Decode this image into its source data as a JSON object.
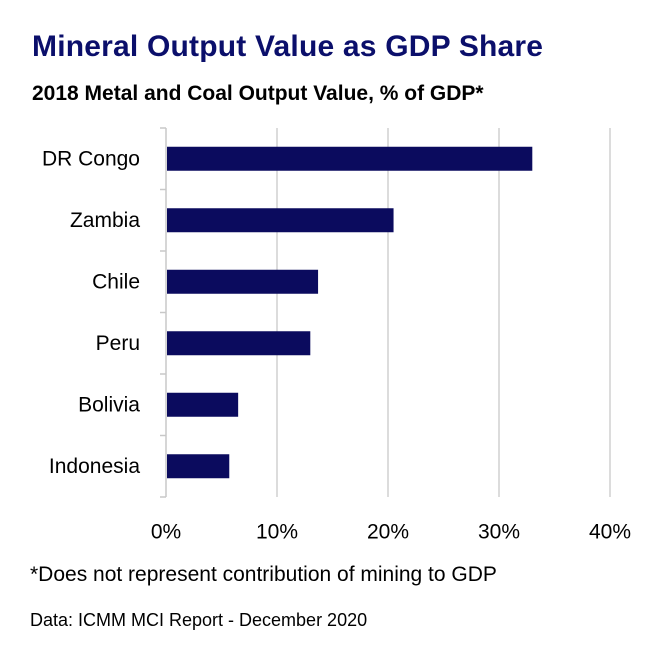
{
  "chart_data": {
    "type": "bar",
    "orientation": "horizontal",
    "title": "Mineral Output Value as GDP Share",
    "subtitle": "2018 Metal and Coal Output Value, % of GDP*",
    "categories": [
      "DR Congo",
      "Zambia",
      "Chile",
      "Peru",
      "Bolivia",
      "Indonesia"
    ],
    "values": [
      33,
      20.5,
      13.7,
      13,
      6.5,
      5.7
    ],
    "unit": "%",
    "xlim": [
      0,
      40
    ],
    "xticks": [
      "0%",
      "10%",
      "20%",
      "30%",
      "40%"
    ],
    "xtick_values": [
      0,
      10,
      20,
      30,
      40
    ],
    "grid": "vertical",
    "bar_color": "#0b0b5e"
  },
  "footnote": "*Does not represent contribution of mining to GDP",
  "source": "Data: ICMM MCI Report - December 2020",
  "colors": {
    "title": "#0b0f6b",
    "grid": "#d0d0d0",
    "axis": "#c8c8c8"
  }
}
